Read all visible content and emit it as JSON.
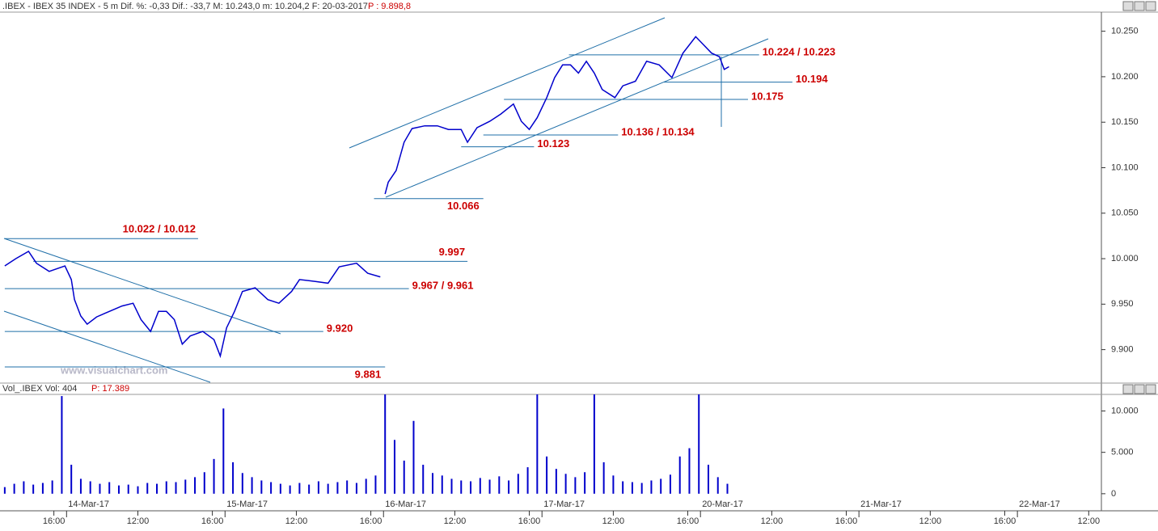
{
  "chart_data": [
    {
      "type": "line",
      "title": ".IBEX - IBEX 35 INDEX - 5 m  Dif. %: -0,33  Dif.: -33,7  M: 10.243,0  m: 10.204,2  F: 20-03-2017",
      "last_price": "P : 9.898,8",
      "watermark": "www.visualchart.com",
      "color": "#0000cc",
      "xlim": [
        -0.42,
        6.53
      ],
      "ylim": [
        9865,
        10271
      ],
      "yticks": [
        {
          "value": 10250,
          "label": "10.250"
        },
        {
          "value": 10200,
          "label": "10.200"
        },
        {
          "value": 10150,
          "label": "10.150"
        },
        {
          "value": 10100,
          "label": "10.100"
        },
        {
          "value": 10050,
          "label": "10.050"
        },
        {
          "value": 10000,
          "label": "10.000"
        },
        {
          "value": 9950,
          "label": "9.950"
        },
        {
          "value": 9900,
          "label": "9.900"
        }
      ],
      "x": [
        -0.39,
        -0.32,
        -0.24,
        -0.19,
        -0.11,
        -0.01,
        0.03,
        0.05,
        0.09,
        0.13,
        0.19,
        0.27,
        0.35,
        0.42,
        0.47,
        0.53,
        0.58,
        0.63,
        0.68,
        0.73,
        0.78,
        0.86,
        0.93,
        0.97,
        1.01,
        1.06,
        1.11,
        1.19,
        1.27,
        1.34,
        1.42,
        1.47,
        1.57,
        1.65,
        1.72,
        1.83,
        1.9,
        1.98,
        2.0,
        2.01,
        2.03,
        2.08,
        2.13,
        2.18,
        2.26,
        2.34,
        2.41,
        2.49,
        2.53,
        2.59,
        2.67,
        2.74,
        2.82,
        2.87,
        2.92,
        2.97,
        3.03,
        3.08,
        3.13,
        3.18,
        3.23,
        3.28,
        3.33,
        3.38,
        3.46,
        3.51,
        3.59,
        3.66,
        3.74,
        3.82,
        3.89,
        3.97,
        4.02,
        4.07,
        4.12,
        4.15,
        4.18
      ],
      "values": [
        9992,
        10000,
        10008,
        9995,
        9986,
        9992,
        9977,
        9955,
        9937,
        9928,
        9936,
        9942,
        9948,
        9951,
        9933,
        9920,
        9942,
        9942,
        9933,
        9906,
        9915,
        9920,
        9911,
        9893,
        9924,
        9942,
        9964,
        9968,
        9955,
        9951,
        9964,
        9977,
        9975,
        9973,
        9991,
        9995,
        9984,
        9980,
        null,
        10071,
        10084,
        10097,
        10128,
        10143,
        10146,
        10146,
        10142,
        10142,
        10128,
        10144,
        10151,
        10159,
        10170,
        10151,
        10142,
        10155,
        10177,
        10199,
        10213,
        10213,
        10204,
        10217,
        10204,
        10186,
        10177,
        10190,
        10195,
        10217,
        10213,
        10199,
        10226,
        10244,
        10235,
        10226,
        10222,
        10208,
        10211
      ],
      "annotations": [
        {
          "text": "10.224 / 10.223",
          "y": 10224,
          "x": [
            3.17,
            4.37
          ]
        },
        {
          "text": "10.194",
          "y": 10194,
          "x": [
            3.77,
            4.58
          ]
        },
        {
          "text": "10.175",
          "y": 10175,
          "x": [
            2.76,
            4.3
          ]
        },
        {
          "text": "10.136 / 10.134",
          "y": 10136,
          "x": [
            2.63,
            3.48
          ]
        },
        {
          "text": "10.123",
          "y": 10123,
          "x": [
            2.49,
            2.95
          ]
        },
        {
          "text": "10.066",
          "y": 10066,
          "x": [
            1.94,
            2.63
          ]
        },
        {
          "text": "10.022 / 10.012",
          "y": 10022,
          "x": [
            -0.39,
            0.83
          ]
        },
        {
          "text": "9.997",
          "y": 9997,
          "x": [
            -0.21,
            2.53
          ]
        },
        {
          "text": "9.967 / 9.961",
          "y": 9967,
          "x": [
            -0.39,
            2.16
          ]
        },
        {
          "text": "9.920",
          "y": 9920,
          "x": [
            -0.39,
            1.62
          ]
        },
        {
          "text": "9.881",
          "y": 9881,
          "x": [
            -0.39,
            2.01
          ]
        }
      ]
    },
    {
      "type": "bar",
      "title": "Vol_.IBEX Vol: 404",
      "last_price": "P: 17.389",
      "color": "#0000cc",
      "xlim": [
        -0.42,
        6.53
      ],
      "ylim": [
        -600,
        12000
      ],
      "yticks": [
        {
          "value": 10000,
          "label": "10.000"
        },
        {
          "value": 5000,
          "label": "5.000"
        },
        0
      ],
      "xticks": [
        {
          "value": -0.08,
          "label": "16:00"
        },
        {
          "value": 0.45,
          "label": "12:00"
        },
        {
          "value": 0.92,
          "label": "16:00"
        },
        {
          "value": 1.45,
          "label": "12:00"
        },
        {
          "value": 1.92,
          "label": "16:00"
        },
        {
          "value": 2.45,
          "label": "12:00"
        },
        {
          "value": 2.92,
          "label": "16:00"
        },
        {
          "value": 3.45,
          "label": "12:00"
        },
        {
          "value": 3.92,
          "label": "16:00"
        },
        {
          "value": 4.45,
          "label": "12:00"
        },
        {
          "value": 4.92,
          "label": "16:00"
        },
        {
          "value": 5.45,
          "label": "12:00"
        },
        {
          "value": 5.92,
          "label": "16:00"
        },
        {
          "value": 6.45,
          "label": "12:00"
        }
      ],
      "date_ticks": [
        {
          "value": 0,
          "label": "14-Mar-17"
        },
        {
          "value": 1,
          "label": "15-Mar-17"
        },
        {
          "value": 2,
          "label": "16-Mar-17"
        },
        {
          "value": 3,
          "label": "17-Mar-17"
        },
        {
          "value": 4,
          "label": "20-Mar-17"
        },
        {
          "value": 5,
          "label": "21-Mar-17"
        },
        {
          "value": 6,
          "label": "22-Mar-17"
        }
      ],
      "x": [
        -0.39,
        -0.33,
        -0.27,
        -0.21,
        -0.15,
        -0.09,
        -0.03,
        0.03,
        0.09,
        0.15,
        0.21,
        0.27,
        0.33,
        0.39,
        0.45,
        0.51,
        0.57,
        0.63,
        0.69,
        0.75,
        0.81,
        0.87,
        0.93,
        0.99,
        1.05,
        1.11,
        1.17,
        1.23,
        1.29,
        1.35,
        1.41,
        1.47,
        1.53,
        1.59,
        1.65,
        1.71,
        1.77,
        1.83,
        1.89,
        1.95,
        2.01,
        2.07,
        2.13,
        2.19,
        2.25,
        2.31,
        2.37,
        2.43,
        2.49,
        2.55,
        2.61,
        2.67,
        2.73,
        2.79,
        2.85,
        2.91,
        2.97,
        3.03,
        3.09,
        3.15,
        3.21,
        3.27,
        3.33,
        3.39,
        3.45,
        3.51,
        3.57,
        3.63,
        3.69,
        3.75,
        3.81,
        3.87,
        3.93,
        3.99,
        4.05,
        4.11,
        4.17
      ],
      "values": [
        800,
        1200,
        1500,
        1100,
        1300,
        1600,
        11800,
        3500,
        1800,
        1500,
        1200,
        1400,
        1000,
        1100,
        900,
        1300,
        1200,
        1500,
        1400,
        1700,
        2000,
        2600,
        4200,
        10300,
        3800,
        2500,
        2000,
        1600,
        1400,
        1200,
        1000,
        1300,
        1100,
        1500,
        1200,
        1400,
        1600,
        1300,
        1800,
        2200,
        12000,
        6500,
        4000,
        8800,
        3500,
        2500,
        2200,
        1800,
        1600,
        1500,
        1900,
        1700,
        2100,
        1600,
        2400,
        3200,
        12000,
        4500,
        3000,
        2400,
        2000,
        2600,
        12000,
        3800,
        2200,
        1500,
        1400,
        1300,
        1600,
        1800,
        2300,
        4500,
        5500,
        12000,
        3500,
        2000,
        1200
      ]
    }
  ]
}
